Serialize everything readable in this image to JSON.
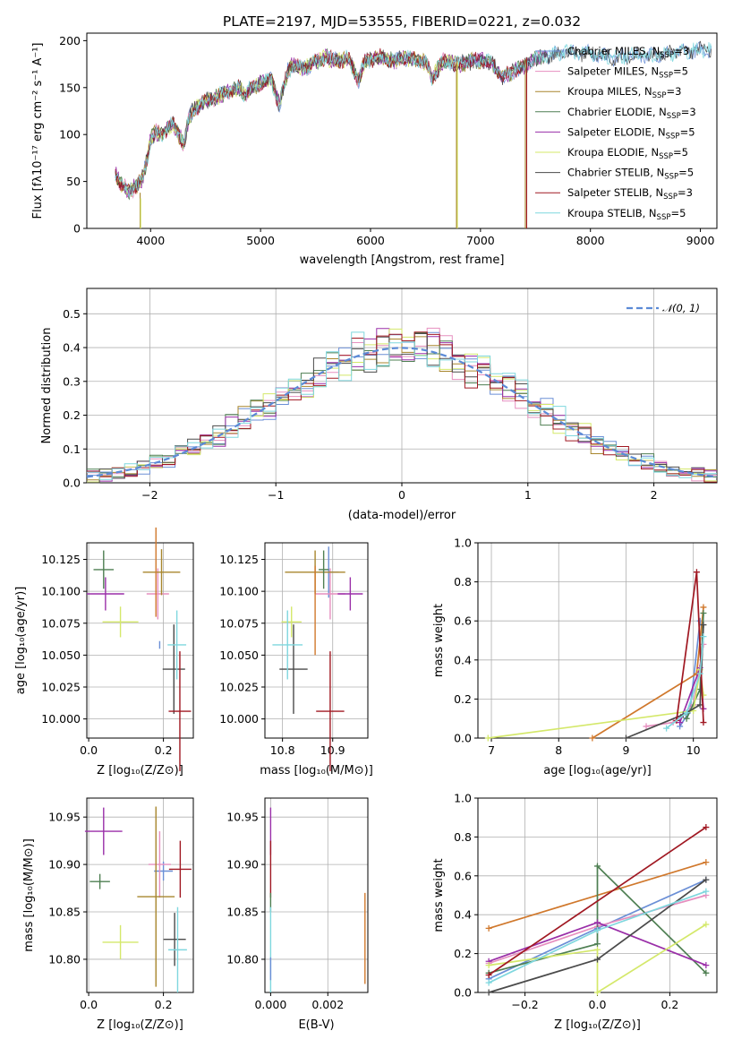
{
  "figure_title": "PLATE=2197, MJD=53555, FIBERID=0221, z=0.032",
  "colors": {
    "Chabrier MILES": "#6b8fd6",
    "Salpeter MILES": "#e68fbf",
    "Kroupa MILES": "#a8862d",
    "Chabrier ELODIE": "#4e7f52",
    "Salpeter ELODIE": "#9a2fa8",
    "Kroupa ELODIE": "#d4e86a",
    "Chabrier STELIB": "#4a4a4a",
    "Salpeter STELIB": "#a01822",
    "Kroupa STELIB": "#7fd7de",
    "normal": "#5b8ad6",
    "kroupa_miles_mass": "#d0782c"
  },
  "legend": [
    {
      "name": "Chabrier MILES",
      "nssp": "3"
    },
    {
      "name": "Salpeter MILES",
      "nssp": "5"
    },
    {
      "name": "Kroupa MILES",
      "nssp": "3"
    },
    {
      "name": "Chabrier ELODIE",
      "nssp": "3"
    },
    {
      "name": "Salpeter ELODIE",
      "nssp": "5"
    },
    {
      "name": "Kroupa ELODIE",
      "nssp": "5"
    },
    {
      "name": "Chabrier STELIB",
      "nssp": "5"
    },
    {
      "name": "Salpeter STELIB",
      "nssp": "3"
    },
    {
      "name": "Kroupa STELIB",
      "nssp": "5"
    }
  ],
  "chart_data": [
    {
      "id": "spectrum",
      "type": "line",
      "xlabel": "wavelength [Angstrom, rest frame]",
      "ylabel": "Flux [f_λ 10^-17 erg cm^-2 s^-1 A^-1]",
      "xlim": [
        3420,
        9150
      ],
      "ylim": [
        0,
        208
      ],
      "xticks": [
        4000,
        5000,
        6000,
        7000,
        8000,
        9000
      ],
      "yticks": [
        0,
        50,
        100,
        150,
        200
      ],
      "grid": false,
      "legend_position": "right",
      "anchors": [
        [
          3680,
          60
        ],
        [
          3720,
          48
        ],
        [
          3800,
          40
        ],
        [
          3880,
          45
        ],
        [
          3930,
          55
        ],
        [
          3970,
          75
        ],
        [
          4000,
          95
        ],
        [
          4050,
          103
        ],
        [
          4100,
          100
        ],
        [
          4200,
          113
        ],
        [
          4300,
          90
        ],
        [
          4350,
          118
        ],
        [
          4400,
          128
        ],
        [
          4500,
          136
        ],
        [
          4600,
          140
        ],
        [
          4700,
          145
        ],
        [
          4800,
          150
        ],
        [
          4860,
          142
        ],
        [
          4900,
          148
        ],
        [
          5000,
          155
        ],
        [
          5100,
          158
        ],
        [
          5170,
          132
        ],
        [
          5250,
          168
        ],
        [
          5300,
          175
        ],
        [
          5400,
          170
        ],
        [
          5500,
          178
        ],
        [
          5600,
          182
        ],
        [
          5700,
          178
        ],
        [
          5800,
          181
        ],
        [
          5890,
          158
        ],
        [
          5950,
          178
        ],
        [
          6000,
          180
        ],
        [
          6100,
          183
        ],
        [
          6200,
          178
        ],
        [
          6300,
          182
        ],
        [
          6400,
          180
        ],
        [
          6500,
          177
        ],
        [
          6560,
          160
        ],
        [
          6650,
          178
        ],
        [
          6800,
          175
        ],
        [
          6900,
          178
        ],
        [
          7000,
          179
        ],
        [
          7100,
          176
        ],
        [
          7150,
          168
        ],
        [
          7200,
          160
        ],
        [
          7300,
          168
        ],
        [
          7400,
          172
        ],
        [
          7500,
          180
        ],
        [
          7600,
          184
        ],
        [
          7800,
          188
        ],
        [
          8000,
          186
        ],
        [
          8200,
          182
        ],
        [
          8400,
          184
        ],
        [
          8600,
          185
        ],
        [
          8800,
          188
        ],
        [
          9000,
          190
        ],
        [
          9100,
          191
        ]
      ],
      "dropouts": [
        {
          "series": "Kroupa MILES",
          "wavelength": 3905,
          "from": 38,
          "to": 0
        },
        {
          "series": "Kroupa ELODIE",
          "wavelength": 6790,
          "from": 178,
          "to": 0
        },
        {
          "series": "Kroupa ELODIE",
          "wavelength": 3910,
          "from": 32,
          "to": 0
        },
        {
          "series": "Kroupa MILES",
          "wavelength": 6782,
          "from": 176,
          "to": 0
        },
        {
          "series": "Salpeter STELIB",
          "wavelength": 7420,
          "from": 182,
          "to": 0
        },
        {
          "series": "Kroupa MILES",
          "wavelength": 7408,
          "from": 180,
          "to": 0
        }
      ],
      "short_series": [
        {
          "series": "Kroupa MILES",
          "xmax": 7420
        },
        {
          "series": "Kroupa ELODIE",
          "xmax": 6800
        },
        {
          "series": "Salpeter STELIB",
          "xmax": 7420
        }
      ]
    },
    {
      "id": "residuals",
      "type": "line",
      "xlabel": "(data-model)/error",
      "ylabel": "Normed distribution",
      "xlim": [
        -2.5,
        2.5
      ],
      "ylim": [
        0,
        0.575
      ],
      "xticks": [
        -2,
        -1,
        0,
        1,
        2
      ],
      "yticks": [
        0.0,
        0.1,
        0.2,
        0.3,
        0.4,
        0.5
      ],
      "grid": true,
      "legend_position": "top-right",
      "normal_label": "𝒩(0, 1)",
      "bin_edges_step": 0.1,
      "series_seed_note": "histogram shape follows N(0,1)"
    },
    {
      "id": "age_vs_Z",
      "type": "scatter",
      "xlabel": "Z [log10(Z/Z⊙)]",
      "ylabel": "age  [log10(age/yr)]",
      "xlim": [
        -0.005,
        0.28
      ],
      "ylim": [
        9.985,
        10.138
      ],
      "xticks": [
        0.0,
        0.2
      ],
      "yticks": [
        10.0,
        10.025,
        10.05,
        10.075,
        10.1,
        10.125
      ],
      "grid": true,
      "points": [
        {
          "series": "Chabrier MILES",
          "x": 0.19,
          "y": 10.058,
          "xerr": 0.0,
          "yerr": 0.003
        },
        {
          "series": "Salpeter MILES",
          "x": 0.185,
          "y": 10.098,
          "xerr": 0.03,
          "yerr": 0.02
        },
        {
          "series": "Kroupa MILES",
          "x": 0.195,
          "y": 10.115,
          "xerr": 0.05,
          "yerr": 0.018
        },
        {
          "series": "Chabrier ELODIE",
          "x": 0.04,
          "y": 10.117,
          "xerr": 0.027,
          "yerr": 0.015
        },
        {
          "series": "Salpeter ELODIE",
          "x": 0.045,
          "y": 10.098,
          "xerr": 0.05,
          "yerr": 0.013
        },
        {
          "series": "Kroupa ELODIE",
          "x": 0.085,
          "y": 10.076,
          "xerr": 0.048,
          "yerr": 0.012
        },
        {
          "series": "Chabrier STELIB",
          "x": 0.228,
          "y": 10.039,
          "xerr": 0.03,
          "yerr": 0.035
        },
        {
          "series": "Salpeter STELIB",
          "x": 0.244,
          "y": 10.006,
          "xerr": 0.03,
          "yerr": 0.047
        },
        {
          "series": "Kroupa STELIB",
          "x": 0.236,
          "y": 10.058,
          "xerr": 0.025,
          "yerr": 0.027
        },
        {
          "series": "kroupa_miles_mass",
          "x": 0.18,
          "y": 10.115,
          "xerr": 0.0,
          "yerr": 0.035
        }
      ]
    },
    {
      "id": "age_vs_mass",
      "type": "scatter",
      "xlabel": "mass [log10(M/M⊙)]",
      "ylabel": "",
      "xlim": [
        10.765,
        10.97
      ],
      "ylim": [
        9.985,
        10.138
      ],
      "xticks": [
        10.8,
        10.9
      ],
      "yticks": [
        10.0,
        10.025,
        10.05,
        10.075,
        10.1,
        10.125
      ],
      "grid": true,
      "points": [
        {
          "series": "Chabrier MILES",
          "x": 10.892,
          "y": 10.115,
          "xerr": 0.02,
          "yerr": 0.02
        },
        {
          "series": "Salpeter MILES",
          "x": 10.895,
          "y": 10.098,
          "xerr": 0.03,
          "yerr": 0.02
        },
        {
          "series": "Kroupa MILES",
          "x": 10.865,
          "y": 10.115,
          "xerr": 0.06,
          "yerr": 0.017
        },
        {
          "series": "Chabrier ELODIE",
          "x": 10.882,
          "y": 10.117,
          "xerr": 0.01,
          "yerr": 0.015
        },
        {
          "series": "Salpeter ELODIE",
          "x": 10.935,
          "y": 10.098,
          "xerr": 0.025,
          "yerr": 0.013
        },
        {
          "series": "Kroupa ELODIE",
          "x": 10.818,
          "y": 10.076,
          "xerr": 0.02,
          "yerr": 0.012
        },
        {
          "series": "Chabrier STELIB",
          "x": 10.822,
          "y": 10.039,
          "xerr": 0.028,
          "yerr": 0.035
        },
        {
          "series": "Salpeter STELIB",
          "x": 10.895,
          "y": 10.006,
          "xerr": 0.028,
          "yerr": 0.047
        },
        {
          "series": "Kroupa STELIB",
          "x": 10.81,
          "y": 10.058,
          "xerr": 0.03,
          "yerr": 0.027
        },
        {
          "series": "kroupa_miles_mass",
          "x": 10.865,
          "y": 10.085,
          "xerr": 0.0,
          "yerr": 0.035
        }
      ]
    },
    {
      "id": "massweight_vs_age",
      "type": "line",
      "xlabel": "age  [log10(age/yr)]",
      "ylabel": "mass weight",
      "xlim": [
        6.8,
        10.35
      ],
      "ylim": [
        0.0,
        1.0
      ],
      "xticks": [
        7,
        8,
        9,
        10
      ],
      "yticks": [
        0.0,
        0.2,
        0.4,
        0.6,
        0.8,
        1.0
      ],
      "grid": true,
      "series": [
        {
          "name": "Chabrier MILES",
          "x": [
            9.8,
            9.95,
            10.1
          ],
          "y": [
            0.06,
            0.14,
            0.6
          ]
        },
        {
          "name": "Salpeter MILES",
          "x": [
            9.3,
            9.7,
            10.0,
            10.15
          ],
          "y": [
            0.06,
            0.08,
            0.17,
            0.48
          ]
        },
        {
          "name": "Kroupa MILES",
          "x": [
            8.5,
            10.05,
            10.15
          ],
          "y": [
            0.0,
            0.33,
            0.67
          ]
        },
        {
          "name": "Chabrier ELODIE",
          "x": [
            9.9,
            10.1,
            10.15
          ],
          "y": [
            0.1,
            0.25,
            0.64
          ]
        },
        {
          "name": "Salpeter ELODIE",
          "x": [
            9.8,
            10.1,
            10.15
          ],
          "y": [
            0.08,
            0.36,
            0.15
          ]
        },
        {
          "name": "Kroupa ELODIE",
          "x": [
            6.95,
            10.0,
            10.1,
            10.15
          ],
          "y": [
            0.0,
            0.14,
            0.35,
            0.22
          ]
        },
        {
          "name": "Chabrier STELIB",
          "x": [
            9.0,
            9.85,
            10.1,
            10.15
          ],
          "y": [
            0.0,
            0.12,
            0.17,
            0.58
          ]
        },
        {
          "name": "Salpeter STELIB",
          "x": [
            9.75,
            10.05,
            10.15
          ],
          "y": [
            0.09,
            0.85,
            0.08
          ]
        },
        {
          "name": "Kroupa STELIB",
          "x": [
            9.6,
            9.9,
            10.1,
            10.15
          ],
          "y": [
            0.05,
            0.13,
            0.33,
            0.52
          ]
        }
      ]
    },
    {
      "id": "mass_vs_Z",
      "type": "scatter",
      "xlabel": "Z [log10(Z/Z⊙)]",
      "ylabel": "mass [log10(M/M⊙)]",
      "xlim": [
        -0.005,
        0.28
      ],
      "ylim": [
        10.765,
        10.97
      ],
      "xticks": [
        0.0,
        0.2
      ],
      "yticks": [
        10.8,
        10.85,
        10.9,
        10.95
      ],
      "grid": true,
      "points": [
        {
          "series": "Chabrier MILES",
          "x": 0.2,
          "y": 10.893,
          "xerr": 0.025,
          "yerr": 0.01
        },
        {
          "series": "Salpeter MILES",
          "x": 0.19,
          "y": 10.9,
          "xerr": 0.03,
          "yerr": 0.035
        },
        {
          "series": "Kroupa MILES",
          "x": 0.18,
          "y": 10.866,
          "xerr": 0.05,
          "yerr": 0.095
        },
        {
          "series": "Chabrier ELODIE",
          "x": 0.03,
          "y": 10.882,
          "xerr": 0.027,
          "yerr": 0.008
        },
        {
          "series": "Salpeter ELODIE",
          "x": 0.04,
          "y": 10.935,
          "xerr": 0.05,
          "yerr": 0.025
        },
        {
          "series": "Kroupa ELODIE",
          "x": 0.085,
          "y": 10.818,
          "xerr": 0.048,
          "yerr": 0.018
        },
        {
          "series": "Chabrier STELIB",
          "x": 0.23,
          "y": 10.821,
          "xerr": 0.03,
          "yerr": 0.028
        },
        {
          "series": "Salpeter STELIB",
          "x": 0.245,
          "y": 10.895,
          "xerr": 0.03,
          "yerr": 0.03
        },
        {
          "series": "Kroupa STELIB",
          "x": 0.238,
          "y": 10.81,
          "xerr": 0.025,
          "yerr": 0.045
        }
      ]
    },
    {
      "id": "mass_vs_ebv",
      "type": "scatter",
      "xlabel": "E(B-V)",
      "ylabel": "",
      "xlim": [
        -0.0002,
        0.0034
      ],
      "ylim": [
        10.765,
        10.97
      ],
      "xticks": [
        0.0,
        0.002
      ],
      "yticks": [
        10.8,
        10.85,
        10.9,
        10.95
      ],
      "grid": true,
      "points": [
        {
          "series": "Salpeter ELODIE",
          "x": 0.0,
          "y": 10.935,
          "xerr": 0.0,
          "yerr": 0.025
        },
        {
          "series": "Salpeter STELIB",
          "x": 0.0,
          "y": 10.895,
          "xerr": 0.0,
          "yerr": 0.03
        },
        {
          "series": "Chabrier ELODIE",
          "x": 0.0,
          "y": 10.86,
          "xerr": 0.0,
          "yerr": 0.01
        },
        {
          "series": "Kroupa STELIB",
          "x": 0.0,
          "y": 10.81,
          "xerr": 0.0,
          "yerr": 0.045
        },
        {
          "series": "Chabrier MILES",
          "x": 0.0,
          "y": 10.79,
          "xerr": 0.0,
          "yerr": 0.012
        },
        {
          "series": "kroupa_miles_mass",
          "x": 0.0033,
          "y": 10.822,
          "xerr": 0.0,
          "yerr": 0.048
        }
      ]
    },
    {
      "id": "massweight_vs_Z",
      "type": "line",
      "xlabel": "Z [log10(Z/Z⊙)]",
      "ylabel": "mass weight",
      "xlim": [
        -0.33,
        0.33
      ],
      "ylim": [
        0.0,
        1.0
      ],
      "xticks": [
        -0.2,
        0.0,
        0.2
      ],
      "yticks": [
        0.0,
        0.2,
        0.4,
        0.6,
        0.8,
        1.0
      ],
      "grid": true,
      "series": [
        {
          "name": "Chabrier MILES",
          "x": [
            -0.3,
            0.0,
            0.3
          ],
          "y": [
            0.07,
            0.33,
            0.58
          ]
        },
        {
          "name": "Salpeter MILES",
          "x": [
            -0.3,
            0.0,
            0.3
          ],
          "y": [
            0.15,
            0.34,
            0.5
          ]
        },
        {
          "name": "Kroupa MILES",
          "x": [
            -0.3,
            0.3
          ],
          "y": [
            0.33,
            0.67
          ]
        },
        {
          "name": "Chabrier ELODIE",
          "x": [
            -0.3,
            0.0,
            0.0,
            0.3
          ],
          "y": [
            0.1,
            0.25,
            0.65,
            0.1
          ]
        },
        {
          "name": "Salpeter ELODIE",
          "x": [
            -0.3,
            0.0,
            0.3
          ],
          "y": [
            0.16,
            0.36,
            0.14
          ]
        },
        {
          "name": "Kroupa ELODIE",
          "x": [
            -0.3,
            0.0,
            0.0,
            0.3
          ],
          "y": [
            0.14,
            0.22,
            0.0,
            0.35
          ]
        },
        {
          "name": "Chabrier STELIB",
          "x": [
            -0.3,
            0.0,
            0.3
          ],
          "y": [
            0.0,
            0.17,
            0.58
          ]
        },
        {
          "name": "Salpeter STELIB",
          "x": [
            -0.3,
            0.3
          ],
          "y": [
            0.09,
            0.85
          ]
        },
        {
          "name": "Kroupa STELIB",
          "x": [
            -0.3,
            0.0,
            0.3
          ],
          "y": [
            0.05,
            0.32,
            0.52
          ]
        }
      ]
    }
  ]
}
